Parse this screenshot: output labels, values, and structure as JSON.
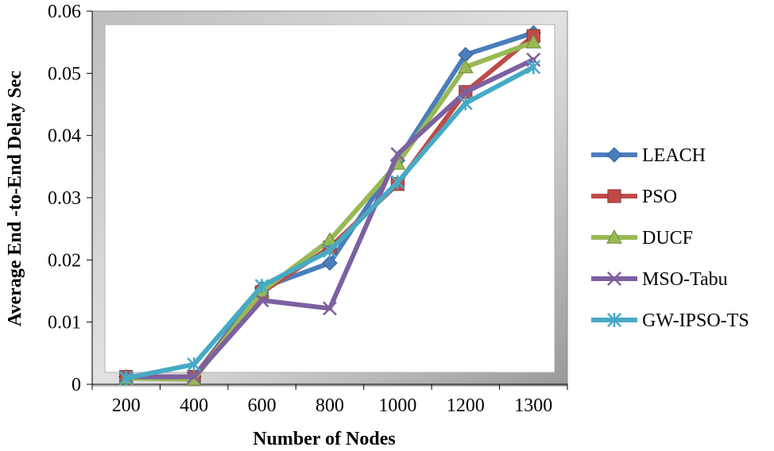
{
  "chart_data": {
    "type": "line",
    "title": "",
    "xlabel": "Number of Nodes",
    "ylabel": "Average End -to-End Delay Sec",
    "categories": [
      "200",
      "400",
      "600",
      "800",
      "1000",
      "1200",
      "1300"
    ],
    "ylim": [
      0,
      0.06
    ],
    "yticks": [
      "0",
      "0.01",
      "0.02",
      "0.03",
      "0.04",
      "0.05",
      "0.06"
    ],
    "grid": false,
    "legend_position": "right",
    "series": [
      {
        "name": "LEACH",
        "color": "#4A7EBB",
        "marker": "diamond",
        "values": [
          0.0012,
          0.0012,
          0.0155,
          0.0195,
          0.036,
          0.053,
          0.0565
        ]
      },
      {
        "name": "PSO",
        "color": "#BE4B48",
        "marker": "square",
        "values": [
          0.0012,
          0.0012,
          0.0148,
          0.022,
          0.0322,
          0.047,
          0.056
        ]
      },
      {
        "name": "DUCF",
        "color": "#98B954",
        "marker": "triangle",
        "values": [
          0.001,
          0.0008,
          0.015,
          0.0232,
          0.0355,
          0.051,
          0.055
        ]
      },
      {
        "name": "MSO-Tabu",
        "color": "#7D60A0",
        "marker": "x",
        "values": [
          0.0012,
          0.0012,
          0.0135,
          0.0122,
          0.037,
          0.047,
          0.0522
        ]
      },
      {
        "name": "GW-IPSO-TS",
        "color": "#46AAC5",
        "marker": "asterisk",
        "values": [
          0.001,
          0.0032,
          0.0158,
          0.0215,
          0.0325,
          0.0452,
          0.051
        ]
      }
    ]
  }
}
